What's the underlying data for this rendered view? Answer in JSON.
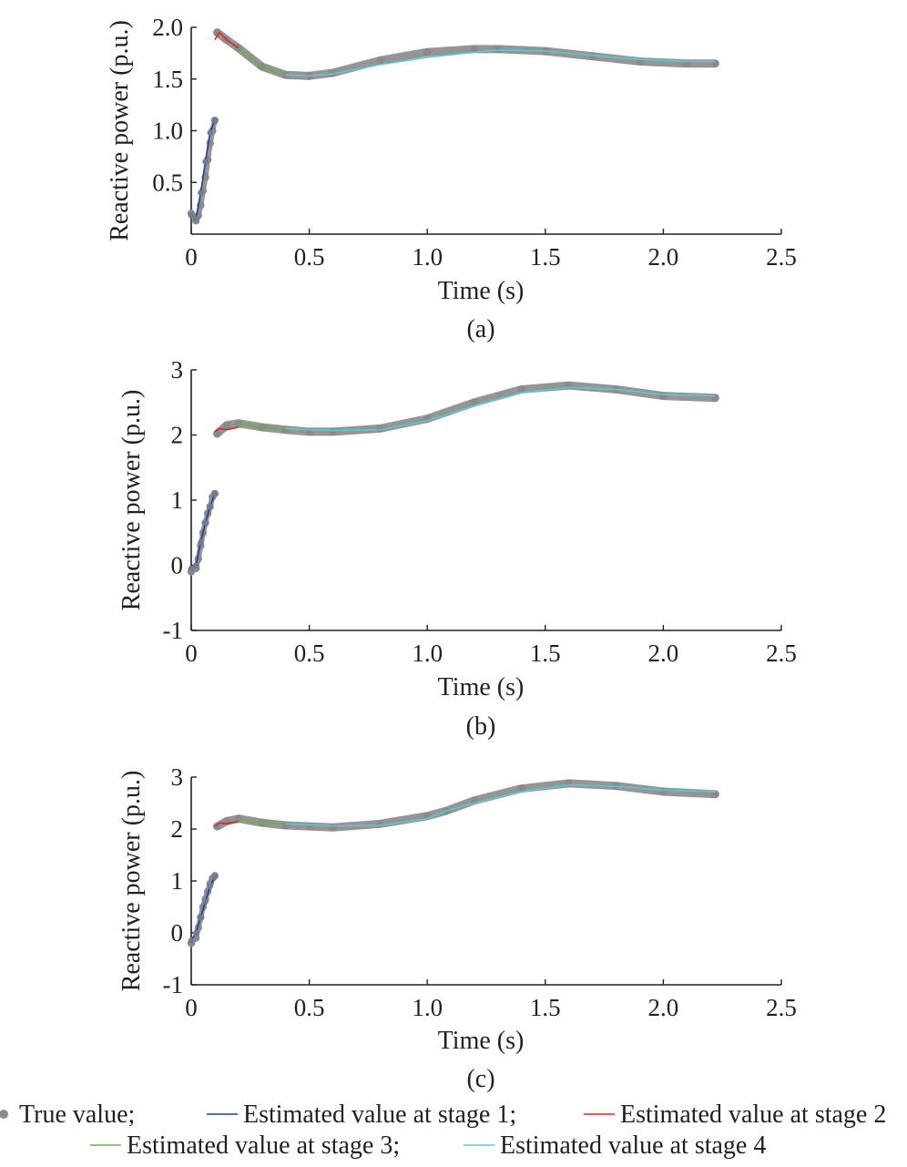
{
  "chart_data": [
    {
      "type": "scatter",
      "panel_label": "(a)",
      "xlabel": "Time (s)",
      "ylabel": "Reactive power (p.u.)",
      "xlim": [
        0,
        2.5
      ],
      "ylim": [
        0.0,
        2.0
      ],
      "xticks": [
        0,
        0.5,
        1.0,
        1.5,
        2.0,
        2.5
      ],
      "xtick_labels": [
        "0",
        "0.5",
        "1.0",
        "1.5",
        "2.0",
        "2.5"
      ],
      "yticks": [
        0.5,
        1.0,
        1.5,
        2.0
      ],
      "ytick_labels": [
        "0.5",
        "1.0",
        "1.5",
        "2.0"
      ],
      "series": [
        {
          "name": "True value",
          "kind": "dots",
          "color": "#8a8a8a",
          "x": [
            0.0,
            0.02,
            0.03,
            0.04,
            0.05,
            0.06,
            0.07,
            0.08,
            0.09,
            0.1,
            0.11,
            0.15,
            0.2,
            0.3,
            0.4,
            0.5,
            0.6,
            0.8,
            1.0,
            1.2,
            1.3,
            1.5,
            1.7,
            1.9,
            2.1,
            2.22
          ],
          "y": [
            0.2,
            0.13,
            0.18,
            0.28,
            0.42,
            0.55,
            0.72,
            0.88,
            1.0,
            1.1,
            1.95,
            1.88,
            1.8,
            1.62,
            1.54,
            1.53,
            1.56,
            1.68,
            1.76,
            1.79,
            1.79,
            1.77,
            1.72,
            1.67,
            1.65,
            1.65
          ]
        },
        {
          "name": "Estimated value at stage 1",
          "kind": "line",
          "color": "#1f3f99",
          "x": [
            0.0,
            0.02,
            0.04,
            0.06,
            0.08,
            0.1
          ],
          "y": [
            0.18,
            0.15,
            0.4,
            0.7,
            0.98,
            1.1
          ]
        },
        {
          "name": "Estimated value at stage 2",
          "kind": "line",
          "color": "#d62728",
          "x": [
            0.1,
            0.12,
            0.15,
            0.2
          ],
          "y": [
            1.88,
            1.95,
            1.88,
            1.8
          ]
        },
        {
          "name": "Estimated value at stage 3",
          "kind": "line",
          "color": "#6ab04c",
          "x": [
            0.2,
            0.25,
            0.3,
            0.35,
            0.4
          ],
          "y": [
            1.78,
            1.7,
            1.62,
            1.57,
            1.55
          ]
        },
        {
          "name": "Estimated value at stage 4",
          "kind": "line",
          "color": "#5bc8d8",
          "x": [
            0.4,
            0.5,
            0.6,
            0.8,
            1.0,
            1.2,
            1.3,
            1.5,
            1.7,
            1.9,
            2.1,
            2.22
          ],
          "y": [
            1.54,
            1.53,
            1.55,
            1.64,
            1.71,
            1.76,
            1.78,
            1.77,
            1.73,
            1.69,
            1.67,
            1.67
          ]
        }
      ]
    },
    {
      "type": "scatter",
      "panel_label": "(b)",
      "xlabel": "Time (s)",
      "ylabel": "Reactive power (p.u.)",
      "xlim": [
        0,
        2.5
      ],
      "ylim": [
        -1,
        3
      ],
      "xticks": [
        0,
        0.5,
        1.0,
        1.5,
        2.0,
        2.5
      ],
      "xtick_labels": [
        "0",
        "0.5",
        "1.0",
        "1.5",
        "2.0",
        "2.5"
      ],
      "yticks": [
        -1,
        0,
        1,
        2,
        3
      ],
      "ytick_labels": [
        "-1",
        "0",
        "1",
        "2",
        "3"
      ],
      "series": [
        {
          "name": "True value",
          "kind": "dots",
          "color": "#8a8a8a",
          "x": [
            0.0,
            0.02,
            0.03,
            0.04,
            0.05,
            0.06,
            0.07,
            0.08,
            0.09,
            0.1,
            0.11,
            0.15,
            0.2,
            0.3,
            0.4,
            0.5,
            0.6,
            0.8,
            1.0,
            1.2,
            1.4,
            1.6,
            1.8,
            2.0,
            2.22
          ],
          "y": [
            -0.1,
            -0.05,
            0.1,
            0.3,
            0.5,
            0.65,
            0.8,
            0.9,
            1.05,
            1.1,
            2.02,
            2.15,
            2.18,
            2.12,
            2.08,
            2.05,
            2.05,
            2.1,
            2.25,
            2.5,
            2.7,
            2.76,
            2.7,
            2.6,
            2.57
          ]
        },
        {
          "name": "Estimated value at stage 1",
          "kind": "line",
          "color": "#1f3f99",
          "x": [
            0.0,
            0.02,
            0.04,
            0.06,
            0.08,
            0.1
          ],
          "y": [
            -0.05,
            0.0,
            0.35,
            0.65,
            0.9,
            1.1
          ]
        },
        {
          "name": "Estimated value at stage 2",
          "kind": "line",
          "color": "#d62728",
          "x": [
            0.1,
            0.12,
            0.15,
            0.2
          ],
          "y": [
            2.05,
            2.1,
            2.08,
            2.12
          ]
        },
        {
          "name": "Estimated value at stage 3",
          "kind": "line",
          "color": "#6ab04c",
          "x": [
            0.2,
            0.25,
            0.3,
            0.35,
            0.4
          ],
          "y": [
            2.16,
            2.15,
            2.12,
            2.1,
            2.1
          ]
        },
        {
          "name": "Estimated value at stage 4",
          "kind": "line",
          "color": "#5bc8d8",
          "x": [
            0.4,
            0.5,
            0.6,
            0.8,
            1.0,
            1.2,
            1.4,
            1.6,
            1.8,
            2.0,
            2.22
          ],
          "y": [
            2.1,
            2.08,
            2.07,
            2.08,
            2.22,
            2.45,
            2.65,
            2.73,
            2.7,
            2.62,
            2.6
          ]
        }
      ]
    },
    {
      "type": "scatter",
      "panel_label": "(c)",
      "xlabel": "Time (s)",
      "ylabel": "Reactive power (p.u.)",
      "xlim": [
        0,
        2.5
      ],
      "ylim": [
        -1,
        3
      ],
      "xticks": [
        0,
        0.5,
        1.0,
        1.5,
        2.0,
        2.5
      ],
      "xtick_labels": [
        "0",
        "0.5",
        "1.0",
        "1.5",
        "2.0",
        "2.5"
      ],
      "yticks": [
        -1,
        0,
        1,
        2,
        3
      ],
      "ytick_labels": [
        "-1",
        "0",
        "1",
        "2",
        "3"
      ],
      "series": [
        {
          "name": "True value",
          "kind": "dots",
          "color": "#8a8a8a",
          "x": [
            0.0,
            0.02,
            0.03,
            0.04,
            0.05,
            0.06,
            0.07,
            0.08,
            0.09,
            0.1,
            0.11,
            0.15,
            0.2,
            0.3,
            0.4,
            0.5,
            0.6,
            0.8,
            1.0,
            1.08,
            1.2,
            1.4,
            1.6,
            1.8,
            2.0,
            2.22
          ],
          "y": [
            -0.2,
            -0.1,
            0.1,
            0.3,
            0.5,
            0.65,
            0.8,
            0.95,
            1.05,
            1.1,
            2.05,
            2.15,
            2.2,
            2.12,
            2.07,
            2.05,
            2.03,
            2.1,
            2.25,
            2.35,
            2.55,
            2.78,
            2.88,
            2.83,
            2.72,
            2.67
          ]
        },
        {
          "name": "Estimated value at stage 1",
          "kind": "line",
          "color": "#1f3f99",
          "x": [
            0.0,
            0.02,
            0.04,
            0.06,
            0.08,
            0.1
          ],
          "y": [
            -0.15,
            0.0,
            0.3,
            0.6,
            0.9,
            1.08
          ]
        },
        {
          "name": "Estimated value at stage 2",
          "kind": "line",
          "color": "#d62728",
          "x": [
            0.1,
            0.12,
            0.15,
            0.2
          ],
          "y": [
            2.05,
            2.12,
            2.1,
            2.15
          ]
        },
        {
          "name": "Estimated value at stage 3",
          "kind": "line",
          "color": "#6ab04c",
          "x": [
            0.2,
            0.25,
            0.3,
            0.35,
            0.4
          ],
          "y": [
            2.18,
            2.15,
            2.12,
            2.1,
            2.1
          ]
        },
        {
          "name": "Estimated value at stage 4",
          "kind": "line",
          "color": "#5bc8d8",
          "x": [
            0.4,
            0.5,
            0.6,
            0.8,
            1.0,
            1.08,
            1.2,
            1.4,
            1.6,
            1.8,
            2.0,
            2.22
          ],
          "y": [
            2.1,
            2.08,
            2.06,
            2.07,
            2.2,
            2.35,
            2.5,
            2.72,
            2.85,
            2.82,
            2.75,
            2.72
          ]
        }
      ]
    }
  ],
  "legend": {
    "row1": [
      {
        "label": "True value;",
        "kind": "dot",
        "color": "#8a8a8a"
      },
      {
        "label": "Estimated value at stage 1;",
        "kind": "line",
        "color": "#1f3f99"
      },
      {
        "label": "Estimated value at stage 2",
        "kind": "line",
        "color": "#d62728"
      }
    ],
    "row2": [
      {
        "label": "Estimated value at stage 3;",
        "kind": "line",
        "color": "#6ab04c"
      },
      {
        "label": "Estimated value at stage 4",
        "kind": "line",
        "color": "#5bc8d8"
      }
    ]
  },
  "axis_color": "#231f20"
}
